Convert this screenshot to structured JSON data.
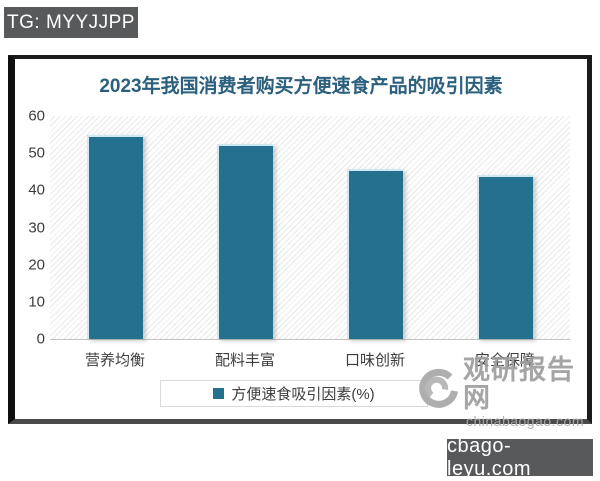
{
  "badges": {
    "top_left": "TG: MYYJJPP",
    "bottom_right": "cbago-leyu.com"
  },
  "chart_data": {
    "type": "bar",
    "title": "2023年我国消费者购买方便速食产品的吸引因素",
    "categories": [
      "营养均衡",
      "配料丰富",
      "口味创新",
      "安全保障"
    ],
    "values": [
      55,
      52.4,
      45.8,
      44
    ],
    "series_name": "方便速食吸引因素(%)",
    "xlabel": "",
    "ylabel": "",
    "ylim": [
      0,
      60
    ],
    "ytick_step": 10,
    "grid": false,
    "legend_position": "bottom",
    "plot_background": "diagonal-hatch"
  },
  "legend": {
    "label": "方便速食吸引因素(%)"
  },
  "watermark": {
    "name": "观研报告网",
    "domain": "chinabaogao.com"
  },
  "colors": {
    "bar": "#24708F",
    "title_text": "#2A5F7E",
    "badge_background": "#58595B",
    "axis_text": "#3d3d3d",
    "watermark_gray": "#9e9e9e"
  }
}
